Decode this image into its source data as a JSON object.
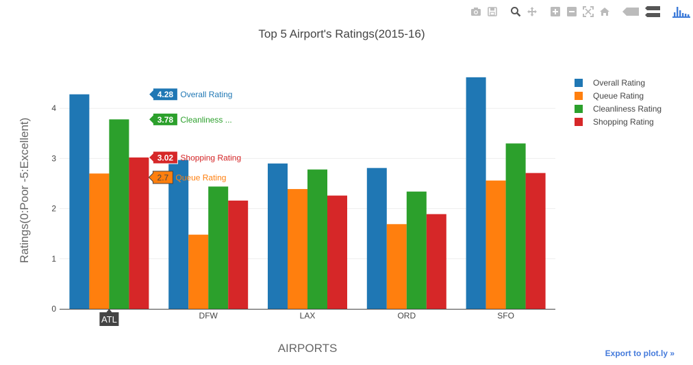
{
  "modebar": {
    "buttons": [
      {
        "name": "camera-icon",
        "title": "Download plot as a png"
      },
      {
        "name": "save-icon",
        "title": "Save and edit plot in cloud"
      },
      {
        "name": "zoom-icon",
        "title": "Zoom"
      },
      {
        "name": "pan-icon",
        "title": "Pan"
      },
      {
        "name": "zoom-in-icon",
        "title": "Zoom in"
      },
      {
        "name": "zoom-out-icon",
        "title": "Zoom out"
      },
      {
        "name": "autoscale-icon",
        "title": "Autoscale"
      },
      {
        "name": "home-icon",
        "title": "Reset axes"
      },
      {
        "name": "hover-closest-icon",
        "title": "Show closest data on hover"
      },
      {
        "name": "hover-compare-icon",
        "title": "Compare data on hover"
      },
      {
        "name": "plotly-logo-icon",
        "title": "Produced with Plotly"
      }
    ]
  },
  "export_link": "Export to plot.ly »",
  "colors": {
    "overall": "#1f77b4",
    "queue": "#ff7f0e",
    "cleanliness": "#2ca02c",
    "shopping": "#d62728",
    "text": "#444444",
    "grid": "#eeeeee",
    "link": "#447adb"
  },
  "chart_data": {
    "type": "bar",
    "title": "Top 5 Airport's Ratings(2015-16)",
    "xlabel": "AIRPORTS",
    "ylabel": "Ratings(0:Poor -5:Excellent)",
    "categories": [
      "ATL",
      "DFW",
      "LAX",
      "ORD",
      "SFO"
    ],
    "ylim": [
      0,
      4.85
    ],
    "yticks": [
      0,
      1,
      2,
      3,
      4
    ],
    "grid": true,
    "legend_position": "top-right",
    "series": [
      {
        "name": "Overall Rating",
        "color": "#1f77b4",
        "values": [
          4.28,
          2.97,
          2.9,
          2.81,
          4.62
        ]
      },
      {
        "name": "Queue Rating",
        "color": "#ff7f0e",
        "values": [
          2.7,
          1.48,
          2.39,
          1.69,
          2.56
        ]
      },
      {
        "name": "Cleanliness Rating",
        "color": "#2ca02c",
        "values": [
          3.78,
          2.44,
          2.78,
          2.34,
          3.3
        ]
      },
      {
        "name": "Shopping Rating",
        "color": "#d62728",
        "values": [
          3.02,
          2.16,
          2.26,
          1.89,
          2.71
        ]
      }
    ],
    "hover": {
      "category": "ATL",
      "labels": [
        {
          "series": 0,
          "value": "4.28",
          "text": "Overall Rating"
        },
        {
          "series": 2,
          "value": "3.78",
          "text": "Cleanliness ..."
        },
        {
          "series": 3,
          "value": "3.02",
          "text": "Shopping Rating"
        },
        {
          "series": 1,
          "value": "2.7",
          "text": "Queue Rating"
        }
      ]
    }
  }
}
